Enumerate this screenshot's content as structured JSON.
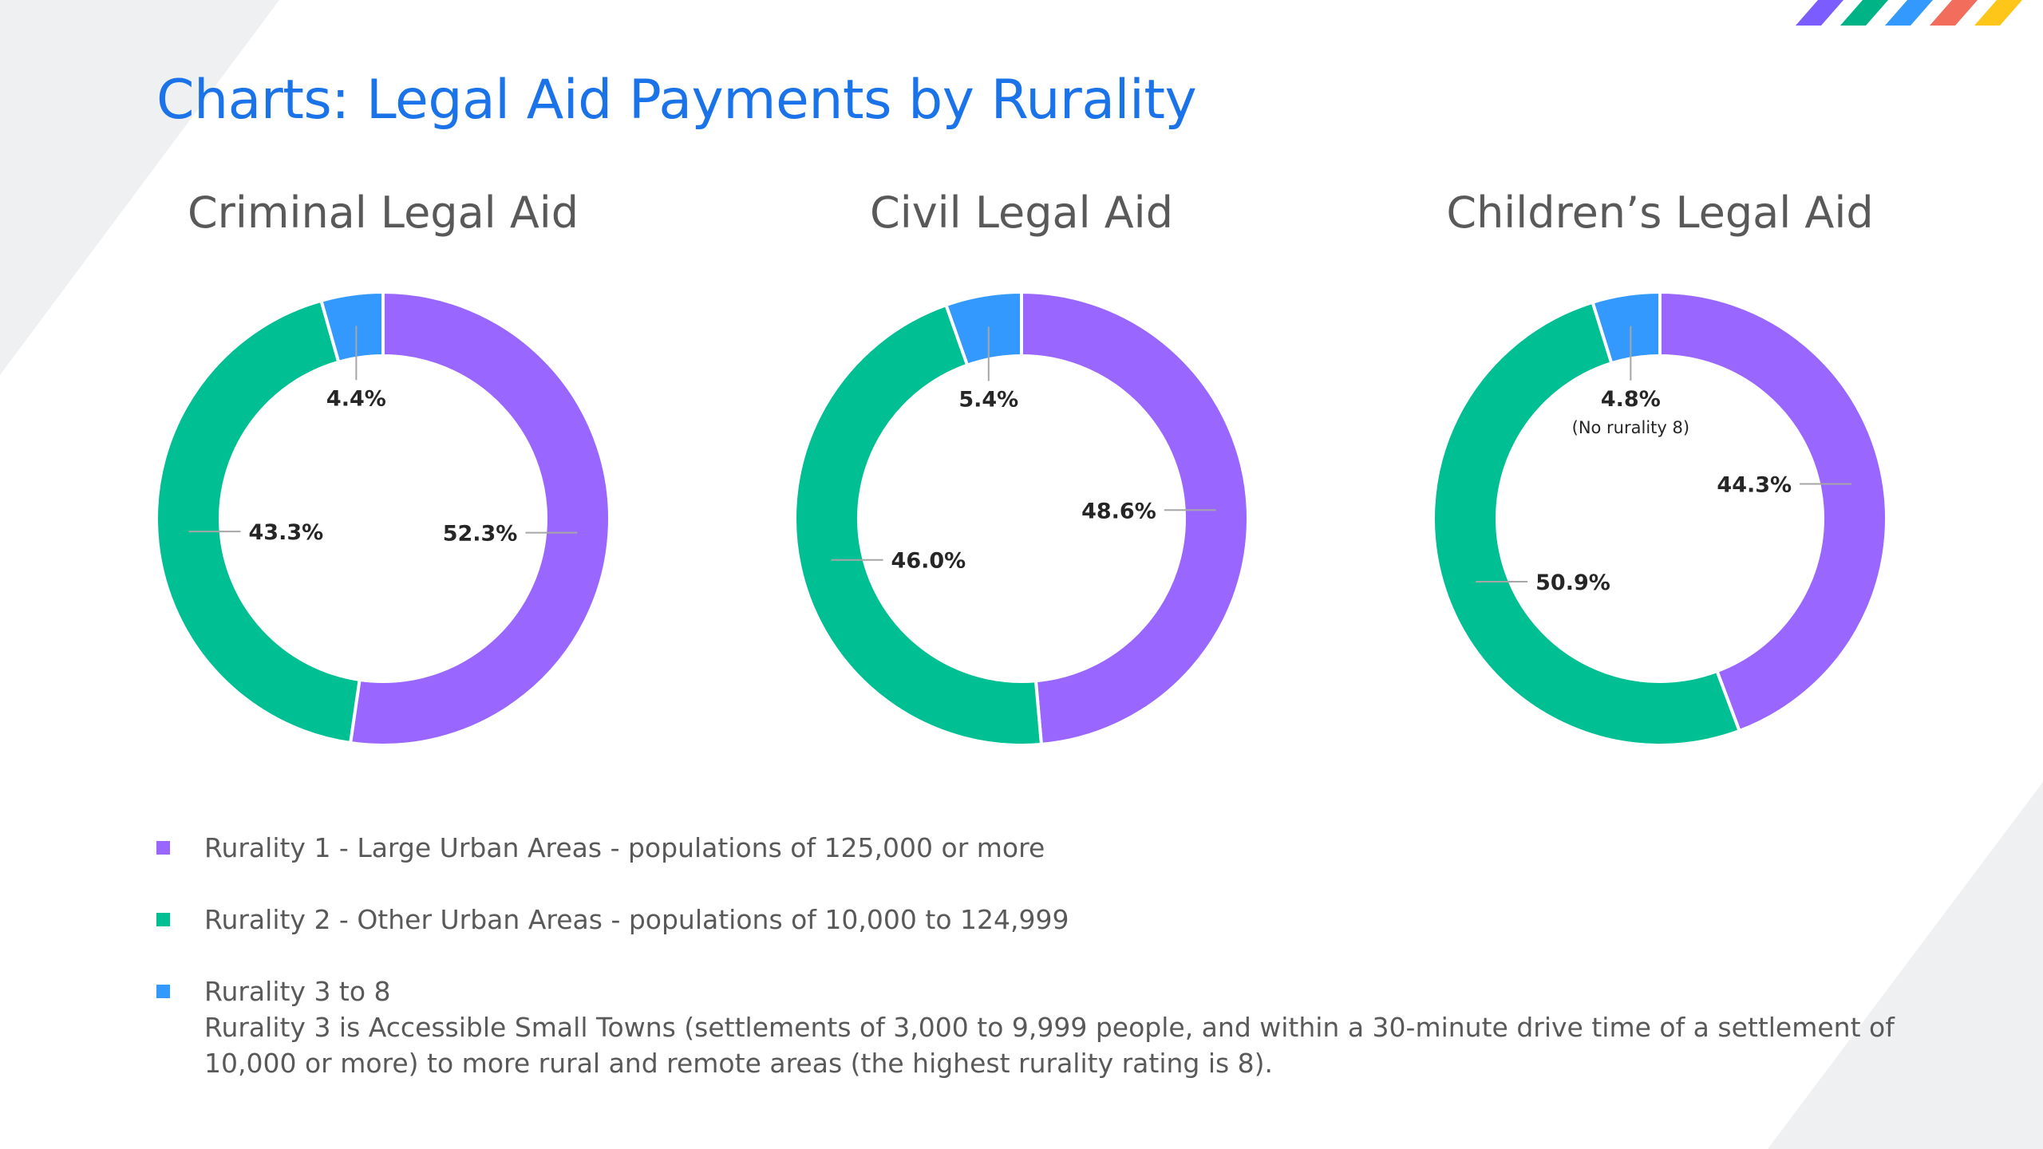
{
  "title": "Charts: Legal Aid Payments by Rurality",
  "colors": {
    "rurality_1": "#9966ff",
    "rurality_2": "#00bf93",
    "rurality_3_to_8": "#3399ff",
    "logo": [
      "#7b5cff",
      "#00b386",
      "#3399ff",
      "#f26d5b",
      "#ffc61a"
    ]
  },
  "legend": [
    {
      "name": "rurality-1",
      "color": "#9966ff",
      "label": "Rurality 1 - Large Urban Areas - populations of 125,000 or more"
    },
    {
      "name": "rurality-2",
      "color": "#00bf93",
      "label": "Rurality 2 - Other Urban Areas - populations of 10,000 to 124,999"
    },
    {
      "name": "rurality-3-8",
      "color": "#3399ff",
      "label": "Rurality 3 to 8",
      "description": "Rurality 3 is Accessible Small Towns (settlements of 3,000 to 9,999 people, and within a 30-minute drive time of a settlement of 10,000 or more) to more rural and remote areas (the highest rurality rating is 8)."
    }
  ],
  "chart_data": [
    {
      "type": "pie",
      "title": "Criminal Legal Aid",
      "categories": [
        "Rurality 1",
        "Rurality 2",
        "Rurality 3 to 8"
      ],
      "values": [
        52.3,
        43.3,
        4.4
      ],
      "labels": [
        "52.3%",
        "43.3%",
        "4.4%"
      ],
      "note": ""
    },
    {
      "type": "pie",
      "title": "Civil Legal Aid",
      "categories": [
        "Rurality 1",
        "Rurality 2",
        "Rurality 3 to 8"
      ],
      "values": [
        48.6,
        46.0,
        5.4
      ],
      "labels": [
        "48.6%",
        "46.0%",
        "5.4%"
      ],
      "note": ""
    },
    {
      "type": "pie",
      "title": "Children’s Legal Aid",
      "categories": [
        "Rurality 1",
        "Rurality 2",
        "Rurality 3 to 8"
      ],
      "values": [
        44.3,
        50.9,
        4.8
      ],
      "labels": [
        "44.3%",
        "50.9%",
        "4.8%"
      ],
      "note": "(No rurality 8)"
    }
  ]
}
